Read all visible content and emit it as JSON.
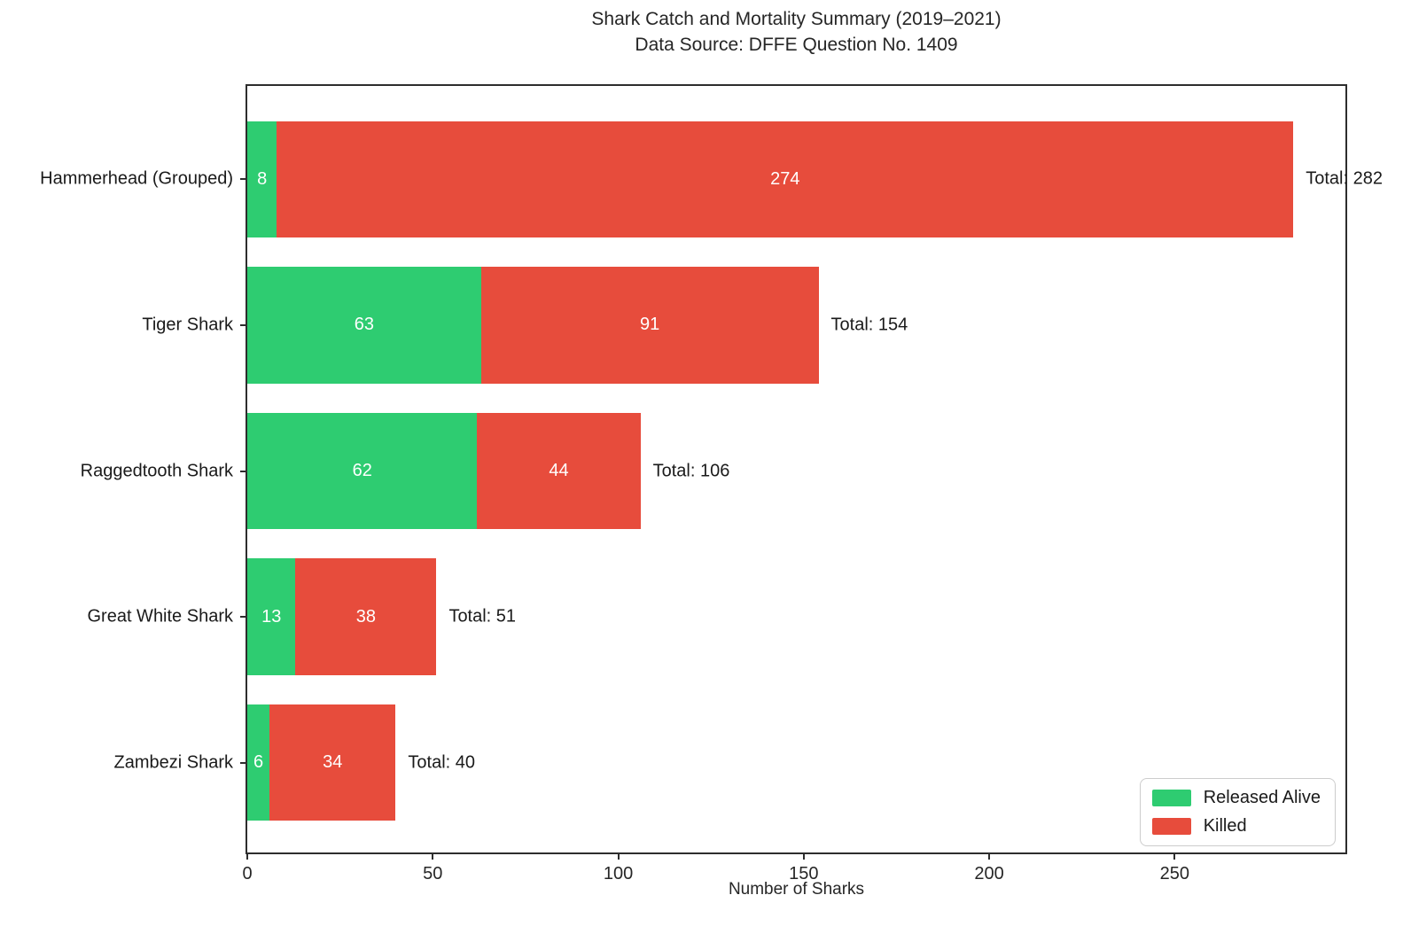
{
  "chart_data": {
    "type": "bar",
    "orientation": "horizontal",
    "stacked": true,
    "title": "Shark Catch and Mortality Summary (2019–2021)",
    "subtitle": "Data Source: DFFE Question No. 1409",
    "xlabel": "Number of Sharks",
    "ylabel": "",
    "categories": [
      "Hammerhead (Grouped)",
      "Tiger Shark",
      "Raggedtooth Shark",
      "Great White Shark",
      "Zambezi Shark"
    ],
    "series": [
      {
        "name": "Released Alive",
        "color": "#2ecc71",
        "values": [
          8,
          63,
          62,
          13,
          6
        ]
      },
      {
        "name": "Killed",
        "color": "#e74c3c",
        "values": [
          274,
          91,
          44,
          38,
          34
        ]
      }
    ],
    "totals": [
      282,
      154,
      106,
      51,
      40
    ],
    "total_label_prefix": "Total: ",
    "xticks": [
      0,
      50,
      100,
      150,
      200,
      250
    ],
    "xlim": [
      0,
      297
    ],
    "grid": false,
    "legend_position": "lower right"
  },
  "colors": {
    "released_alive": "#2ecc71",
    "killed": "#e74c3c",
    "spine": "#2d2d2d",
    "text": "#1a1a1a"
  }
}
